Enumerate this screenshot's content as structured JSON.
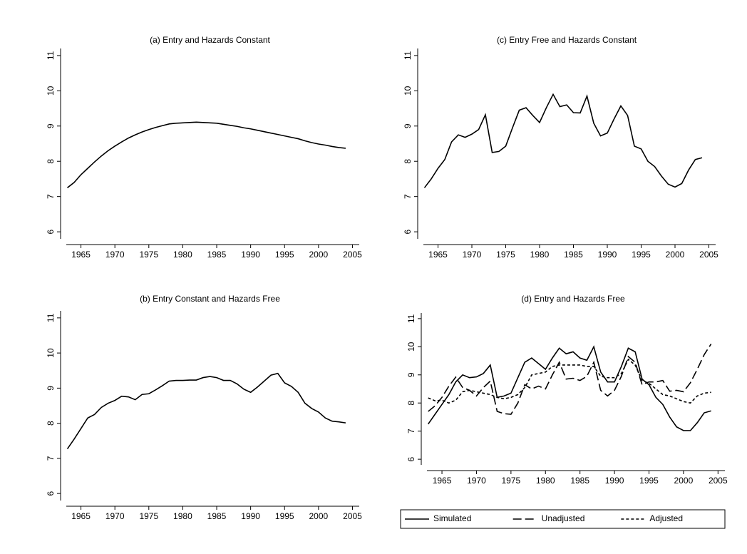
{
  "chart_data": [
    {
      "type": "line",
      "title": "(a) Entry and Hazards Constant",
      "x": [
        1963,
        1964,
        1965,
        1966,
        1967,
        1968,
        1969,
        1970,
        1971,
        1972,
        1973,
        1974,
        1975,
        1976,
        1977,
        1978,
        1979,
        1980,
        1981,
        1982,
        1983,
        1984,
        1985,
        1986,
        1987,
        1988,
        1989,
        1990,
        1991,
        1992,
        1993,
        1994,
        1995,
        1996,
        1997,
        1998,
        1999,
        2000,
        2001,
        2002,
        2003,
        2004
      ],
      "values": [
        7.25,
        7.4,
        7.62,
        7.8,
        7.98,
        8.15,
        8.3,
        8.43,
        8.55,
        8.66,
        8.75,
        8.83,
        8.9,
        8.96,
        9.01,
        9.06,
        9.08,
        9.09,
        9.1,
        9.11,
        9.1,
        9.09,
        9.08,
        9.05,
        9.02,
        8.99,
        8.95,
        8.92,
        8.88,
        8.84,
        8.8,
        8.76,
        8.72,
        8.68,
        8.64,
        8.58,
        8.53,
        8.49,
        8.46,
        8.42,
        8.39,
        8.37
      ],
      "color": "#000000",
      "xlim": [
        1962,
        2006
      ],
      "ylim": [
        5.8,
        11.2
      ],
      "xticks": [
        1965,
        1970,
        1975,
        1980,
        1985,
        1990,
        1995,
        2000,
        2005
      ],
      "yticks": [
        6,
        7,
        8,
        9,
        10,
        11
      ]
    },
    {
      "type": "line",
      "title": "(c) Entry Free and Hazards Constant",
      "x": [
        1963,
        1964,
        1965,
        1966,
        1967,
        1968,
        1969,
        1970,
        1971,
        1972,
        1973,
        1974,
        1975,
        1976,
        1977,
        1978,
        1979,
        1980,
        1981,
        1982,
        1983,
        1984,
        1985,
        1986,
        1987,
        1988,
        1989,
        1990,
        1991,
        1992,
        1993,
        1994,
        1995,
        1996,
        1997,
        1998,
        1999,
        2000,
        2001,
        2002,
        2003,
        2004
      ],
      "values": [
        7.25,
        7.5,
        7.8,
        8.05,
        8.55,
        8.75,
        8.68,
        8.77,
        8.9,
        9.32,
        8.25,
        8.28,
        8.43,
        8.95,
        9.45,
        9.52,
        9.3,
        9.1,
        9.52,
        9.9,
        9.55,
        9.6,
        9.38,
        9.37,
        9.85,
        9.08,
        8.72,
        8.8,
        9.2,
        9.57,
        9.3,
        8.43,
        8.35,
        8.0,
        7.85,
        7.58,
        7.35,
        7.27,
        7.37,
        7.75,
        8.05,
        8.1
      ],
      "color": "#000000",
      "xlim": [
        1962,
        2006
      ],
      "ylim": [
        5.8,
        11.2
      ],
      "xticks": [
        1965,
        1970,
        1975,
        1980,
        1985,
        1990,
        1995,
        2000,
        2005
      ],
      "yticks": [
        6,
        7,
        8,
        9,
        10,
        11
      ]
    },
    {
      "type": "line",
      "title": "(b) Entry Constant and Hazards Free",
      "x": [
        1963,
        1964,
        1965,
        1966,
        1967,
        1968,
        1969,
        1970,
        1971,
        1972,
        1973,
        1974,
        1975,
        1976,
        1977,
        1978,
        1979,
        1980,
        1981,
        1982,
        1983,
        1984,
        1985,
        1986,
        1987,
        1988,
        1989,
        1990,
        1991,
        1992,
        1993,
        1994,
        1995,
        1996,
        1997,
        1998,
        1999,
        2000,
        2001,
        2002,
        2003,
        2004
      ],
      "values": [
        7.27,
        7.55,
        7.85,
        8.15,
        8.25,
        8.45,
        8.57,
        8.65,
        8.77,
        8.75,
        8.67,
        8.82,
        8.84,
        8.95,
        9.07,
        9.2,
        9.22,
        9.22,
        9.23,
        9.23,
        9.3,
        9.33,
        9.3,
        9.22,
        9.22,
        9.12,
        8.97,
        8.88,
        9.03,
        9.2,
        9.37,
        9.42,
        9.15,
        9.05,
        8.88,
        8.57,
        8.42,
        8.32,
        8.15,
        8.06,
        8.04,
        8.01
      ],
      "color": "#000000",
      "xlim": [
        1962,
        2006
      ],
      "ylim": [
        5.8,
        11.2
      ],
      "xticks": [
        1965,
        1970,
        1975,
        1980,
        1985,
        1990,
        1995,
        2000,
        2005
      ],
      "yticks": [
        6,
        7,
        8,
        9,
        10,
        11
      ]
    },
    {
      "type": "line",
      "title": "(d) Entry and Hazards Free",
      "x": [
        1963,
        1964,
        1965,
        1966,
        1967,
        1968,
        1969,
        1970,
        1971,
        1972,
        1973,
        1974,
        1975,
        1976,
        1977,
        1978,
        1979,
        1980,
        1981,
        1982,
        1983,
        1984,
        1985,
        1986,
        1987,
        1988,
        1989,
        1990,
        1991,
        1992,
        1993,
        1994,
        1995,
        1996,
        1997,
        1998,
        1999,
        2000,
        2001,
        2002,
        2003,
        2004
      ],
      "series": [
        {
          "name": "Simulated",
          "color": "#000000",
          "linestyle": "solid",
          "values": [
            7.25,
            7.6,
            7.95,
            8.3,
            8.75,
            9.0,
            8.9,
            8.93,
            9.05,
            9.35,
            8.2,
            8.25,
            8.35,
            8.9,
            9.45,
            9.6,
            9.4,
            9.2,
            9.6,
            9.95,
            9.75,
            9.82,
            9.6,
            9.52,
            10.0,
            9.1,
            8.75,
            8.75,
            9.3,
            9.95,
            9.82,
            8.85,
            8.65,
            8.2,
            7.95,
            7.5,
            7.15,
            7.02,
            7.02,
            7.3,
            7.65,
            7.72
          ]
        },
        {
          "name": "Unadjusted",
          "color": "#000000",
          "linestyle": "longdash",
          "values": [
            7.7,
            7.9,
            8.2,
            8.6,
            8.92,
            8.55,
            8.45,
            8.25,
            8.55,
            8.78,
            7.7,
            7.62,
            7.6,
            8.0,
            8.65,
            8.5,
            8.6,
            8.5,
            9.0,
            9.45,
            8.85,
            8.88,
            8.8,
            8.95,
            9.45,
            8.45,
            8.25,
            8.45,
            8.95,
            9.65,
            9.45,
            8.65,
            8.75,
            8.75,
            8.8,
            8.42,
            8.45,
            8.4,
            8.72,
            9.2,
            9.72,
            10.1
          ]
        },
        {
          "name": "Adjusted",
          "color": "#000000",
          "linestyle": "shortdash",
          "values": [
            8.18,
            8.08,
            8.1,
            8.0,
            8.1,
            8.4,
            8.45,
            8.4,
            8.35,
            8.3,
            8.2,
            8.15,
            8.2,
            8.3,
            8.55,
            9.0,
            9.05,
            9.1,
            9.3,
            9.35,
            9.35,
            9.35,
            9.35,
            9.3,
            9.3,
            8.95,
            8.9,
            8.9,
            9.05,
            9.55,
            9.35,
            8.8,
            8.7,
            8.5,
            8.3,
            8.25,
            8.15,
            8.05,
            8.0,
            8.25,
            8.35,
            8.38
          ]
        }
      ],
      "legend": "bottom",
      "xlim": [
        1962,
        2006
      ],
      "ylim": [
        5.8,
        11.2
      ],
      "xticks": [
        1965,
        1970,
        1975,
        1980,
        1985,
        1990,
        1995,
        2000,
        2005
      ],
      "yticks": [
        6,
        7,
        8,
        9,
        10,
        11
      ]
    }
  ]
}
